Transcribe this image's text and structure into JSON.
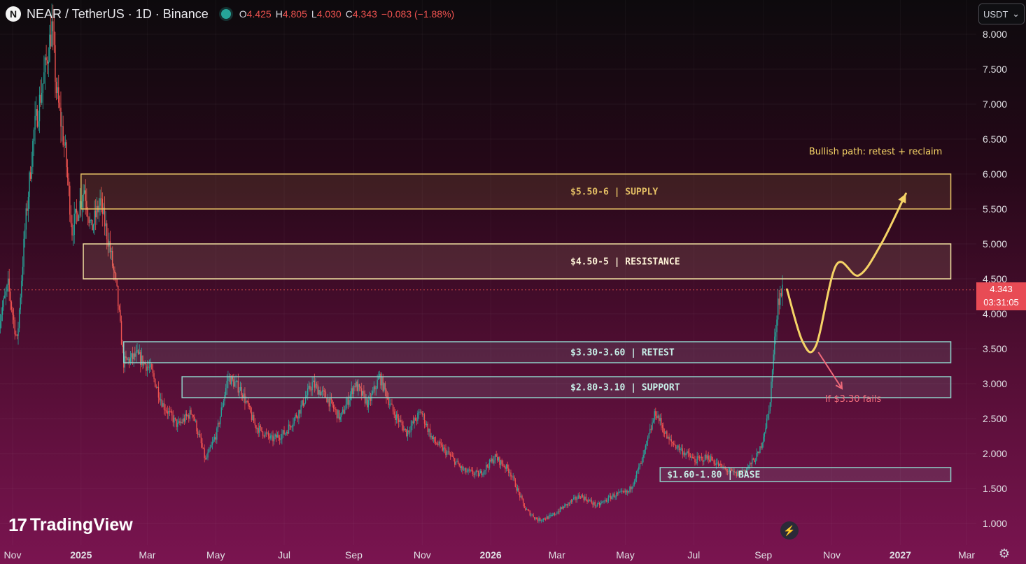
{
  "header": {
    "logo_letter": "N",
    "symbol_title": "NEAR / TetherUS · 1D · Binance",
    "open_label": "O",
    "open": "4.425",
    "high_label": "H",
    "high": "4.805",
    "low_label": "L",
    "low": "4.030",
    "close_label": "C",
    "close": "4.343",
    "change": "−0.083 (−1.88%)",
    "currency_select": "USDT"
  },
  "price_tag": {
    "price": "4.343",
    "countdown": "03:31:05"
  },
  "branding": {
    "logo_text": "TradingView"
  },
  "colors": {
    "supply": "#e6c165",
    "resistance": "#f0dfa0",
    "retest": "#8fd0c8",
    "support": "#8fd0c8",
    "base": "#8fd0c8",
    "bull_path": "#f5d366",
    "bear_path": "#ef6a7a",
    "candle_up": "#26a69a",
    "candle_down": "#ef5350",
    "price_tag": "#e84b55"
  },
  "chart_data": {
    "type": "candlestick",
    "title": "NEAR / TetherUS · 1D · Binance",
    "y_axis": {
      "min": 1.0,
      "max": 8.0,
      "ticks": [
        "1.000",
        "1.500",
        "2.000",
        "2.500",
        "3.000",
        "3.500",
        "4.000",
        "4.500",
        "5.000",
        "5.500",
        "6.000",
        "6.500",
        "7.000",
        "7.500",
        "8.000"
      ],
      "scale": "linear",
      "currency": "USDT"
    },
    "x_axis": {
      "ticks": [
        {
          "label": "Nov",
          "date": "2024-11-01"
        },
        {
          "label": "2025",
          "date": "2025-01-01",
          "bold": true
        },
        {
          "label": "Mar",
          "date": "2025-03-01"
        },
        {
          "label": "May",
          "date": "2025-05-01"
        },
        {
          "label": "Jul",
          "date": "2025-07-01"
        },
        {
          "label": "Sep",
          "date": "2025-09-01"
        },
        {
          "label": "Nov",
          "date": "2025-11-01"
        },
        {
          "label": "2026",
          "date": "2026-01-01",
          "bold": true
        },
        {
          "label": "Mar",
          "date": "2026-03-01"
        },
        {
          "label": "May",
          "date": "2026-05-01"
        },
        {
          "label": "Jul",
          "date": "2026-07-01"
        },
        {
          "label": "Sep",
          "date": "2026-09-01"
        },
        {
          "label": "Nov",
          "date": "2026-11-01"
        },
        {
          "label": "2027",
          "date": "2027-01-01",
          "bold": true
        },
        {
          "label": "Mar",
          "date": "2027-03-01"
        }
      ]
    },
    "price_path": [
      [
        "2024-10-20",
        3.9
      ],
      [
        "2024-10-28",
        4.4
      ],
      [
        "2024-11-05",
        3.6
      ],
      [
        "2024-11-12",
        5.2
      ],
      [
        "2024-11-20",
        6.6
      ],
      [
        "2024-11-28",
        7.3
      ],
      [
        "2024-12-06",
        8.1
      ],
      [
        "2024-12-10",
        7.2
      ],
      [
        "2024-12-18",
        6.3
      ],
      [
        "2024-12-24",
        5.2
      ],
      [
        "2025-01-04",
        5.8
      ],
      [
        "2025-01-10",
        5.2
      ],
      [
        "2025-01-18",
        5.6
      ],
      [
        "2025-01-26",
        5.0
      ],
      [
        "2025-02-02",
        4.3
      ],
      [
        "2025-02-08",
        3.3
      ],
      [
        "2025-02-20",
        3.4
      ],
      [
        "2025-03-04",
        3.2
      ],
      [
        "2025-03-15",
        2.7
      ],
      [
        "2025-03-28",
        2.4
      ],
      [
        "2025-04-10",
        2.6
      ],
      [
        "2025-04-22",
        1.9
      ],
      [
        "2025-05-02",
        2.3
      ],
      [
        "2025-05-12",
        3.1
      ],
      [
        "2025-05-24",
        2.9
      ],
      [
        "2025-06-05",
        2.4
      ],
      [
        "2025-06-20",
        2.2
      ],
      [
        "2025-07-02",
        2.3
      ],
      [
        "2025-07-14",
        2.6
      ],
      [
        "2025-07-26",
        3.0
      ],
      [
        "2025-08-08",
        2.8
      ],
      [
        "2025-08-20",
        2.5
      ],
      [
        "2025-09-02",
        3.0
      ],
      [
        "2025-09-14",
        2.7
      ],
      [
        "2025-09-24",
        3.1
      ],
      [
        "2025-10-06",
        2.6
      ],
      [
        "2025-10-18",
        2.3
      ],
      [
        "2025-10-31",
        2.6
      ],
      [
        "2025-11-10",
        2.2
      ],
      [
        "2025-11-24",
        2.0
      ],
      [
        "2025-12-08",
        1.75
      ],
      [
        "2025-12-22",
        1.7
      ],
      [
        "2026-01-05",
        1.95
      ],
      [
        "2026-01-18",
        1.75
      ],
      [
        "2026-02-01",
        1.2
      ],
      [
        "2026-02-12",
        1.05
      ],
      [
        "2026-02-24",
        1.1
      ],
      [
        "2026-03-08",
        1.25
      ],
      [
        "2026-03-22",
        1.4
      ],
      [
        "2026-04-06",
        1.25
      ],
      [
        "2026-04-20",
        1.4
      ],
      [
        "2026-05-04",
        1.45
      ],
      [
        "2026-05-16",
        1.9
      ],
      [
        "2026-05-28",
        2.6
      ],
      [
        "2026-06-08",
        2.2
      ],
      [
        "2026-06-20",
        2.05
      ],
      [
        "2026-07-02",
        1.9
      ],
      [
        "2026-07-14",
        1.95
      ],
      [
        "2026-07-26",
        1.8
      ],
      [
        "2026-08-08",
        1.7
      ],
      [
        "2026-08-18",
        1.8
      ],
      [
        "2026-08-28",
        2.0
      ],
      [
        "2026-09-06",
        2.6
      ],
      [
        "2026-09-14",
        4.2
      ],
      [
        "2026-09-18",
        4.34
      ]
    ],
    "zones": [
      {
        "label": "$5.50-6 | SUPPLY",
        "low": 5.5,
        "high": 6.0,
        "start": "2025-01-01",
        "end": "2027-02-15",
        "color": "supply"
      },
      {
        "label": "$4.50-5 | RESISTANCE",
        "low": 4.5,
        "high": 5.0,
        "start": "2025-01-03",
        "end": "2027-02-15",
        "color": "resistance"
      },
      {
        "label": "$3.30-3.60 | RETEST",
        "low": 3.3,
        "high": 3.6,
        "start": "2025-02-08",
        "end": "2027-02-15",
        "color": "retest"
      },
      {
        "label": "$2.80-3.10 | SUPPORT",
        "low": 2.8,
        "high": 3.1,
        "start": "2025-04-01",
        "end": "2027-02-15",
        "color": "support"
      },
      {
        "label": "$1.60-1.80 | BASE",
        "low": 1.6,
        "high": 1.8,
        "start": "2026-06-01",
        "end": "2027-02-15",
        "color": "base"
      }
    ],
    "annotations": [
      {
        "text": "Bullish path: retest + reclaim",
        "date": "2026-12-10",
        "price": 6.28,
        "color": "bull_path"
      },
      {
        "text": "If $3.30 fails",
        "date": "2026-11-20",
        "price": 2.74,
        "color": "bear_path"
      }
    ],
    "bull_path": [
      [
        "2026-09-22",
        4.35
      ],
      [
        "2026-10-06",
        3.6
      ],
      [
        "2026-10-18",
        3.55
      ],
      [
        "2026-11-05",
        4.7
      ],
      [
        "2026-11-25",
        4.55
      ],
      [
        "2026-12-15",
        5.0
      ],
      [
        "2027-01-06",
        5.72
      ]
    ],
    "bear_path": [
      [
        "2026-10-20",
        3.45
      ],
      [
        "2026-11-10",
        2.93
      ]
    ],
    "last_price_line": 4.343
  }
}
